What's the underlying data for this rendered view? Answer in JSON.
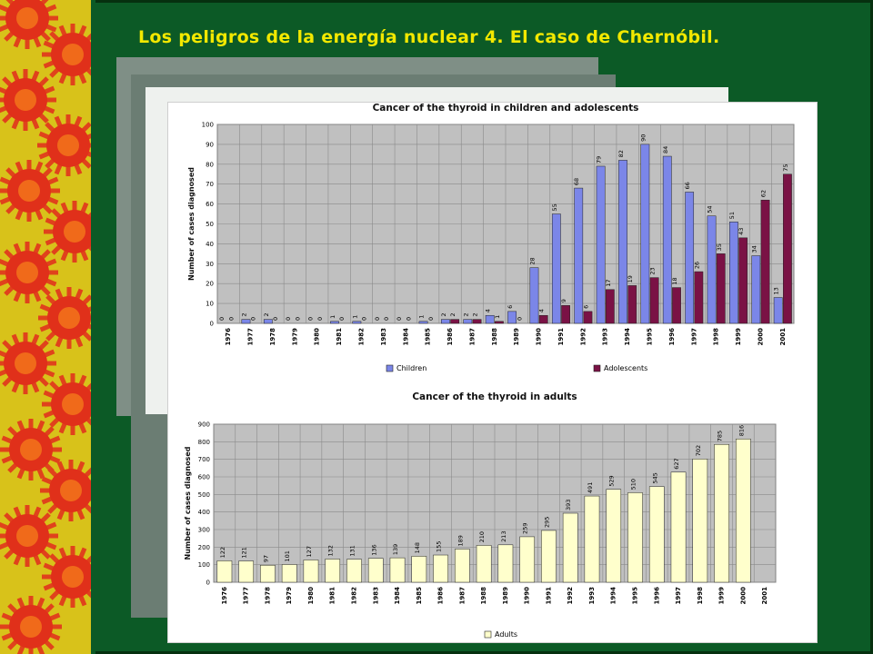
{
  "page": {
    "title": "Los peligros de  la  energía nuclear 4. El caso de  Chernóbil."
  },
  "colors": {
    "background": "#0c5a26",
    "title_text": "#f2e800",
    "children": "#7b86e8",
    "adolescents": "#7a1245",
    "adults": "#ffffcc",
    "plot_area": "#c0c0c0"
  },
  "decor": {
    "border": "sun-badge-border",
    "photos": [
      "nuclear-plant-photo",
      "landscape-photo",
      "document-photo"
    ]
  },
  "chart_data": [
    {
      "type": "bar",
      "title": "Cancer of the thyroid in children and adolescents",
      "ylabel": "Number of cases diagnosed",
      "ylim": [
        0,
        100
      ],
      "yticks": [
        0,
        10,
        20,
        30,
        40,
        50,
        60,
        70,
        80,
        90,
        100
      ],
      "grid": true,
      "legend_position": "bottom",
      "categories": [
        "1976",
        "1977",
        "1978",
        "1979",
        "1980",
        "1981",
        "1982",
        "1983",
        "1984",
        "1985",
        "1986",
        "1987",
        "1988",
        "1989",
        "1990",
        "1991",
        "1992",
        "1993",
        "1994",
        "1995",
        "1996",
        "1997",
        "1998",
        "1999",
        "2000",
        "2001"
      ],
      "series": [
        {
          "name": "Children",
          "color": "#7b86e8",
          "values": [
            0,
            2,
            2,
            0,
            0,
            1,
            1,
            0,
            0,
            1,
            2,
            2,
            4,
            6,
            28,
            55,
            68,
            79,
            82,
            90,
            84,
            66,
            54,
            51,
            34,
            13
          ]
        },
        {
          "name": "Adolescents",
          "color": "#7a1245",
          "values": [
            0,
            0,
            0,
            0,
            0,
            0,
            0,
            0,
            0,
            0,
            2,
            2,
            1,
            0,
            4,
            9,
            6,
            17,
            19,
            23,
            18,
            26,
            35,
            43,
            62,
            75
          ]
        }
      ]
    },
    {
      "type": "bar",
      "title": "Cancer of the thyroid in adults",
      "ylabel": "Number of cases diagnosed",
      "ylim": [
        0,
        900
      ],
      "yticks": [
        0,
        100,
        200,
        300,
        400,
        500,
        600,
        700,
        800,
        900
      ],
      "grid": true,
      "legend_position": "bottom",
      "categories": [
        "1976",
        "1977",
        "1978",
        "1979",
        "1980",
        "1981",
        "1982",
        "1983",
        "1984",
        "1985",
        "1986",
        "1987",
        "1988",
        "1989",
        "1990",
        "1991",
        "1992",
        "1993",
        "1994",
        "1995",
        "1996",
        "1997",
        "1998",
        "1999",
        "2000",
        "2001"
      ],
      "series": [
        {
          "name": "Adults",
          "color": "#ffffcc",
          "values": [
            122,
            121,
            97,
            101,
            127,
            132,
            131,
            136,
            139,
            148,
            155,
            189,
            210,
            213,
            259,
            295,
            393,
            491,
            529,
            510,
            545,
            627,
            702,
            785,
            816,
            null
          ]
        }
      ]
    }
  ]
}
